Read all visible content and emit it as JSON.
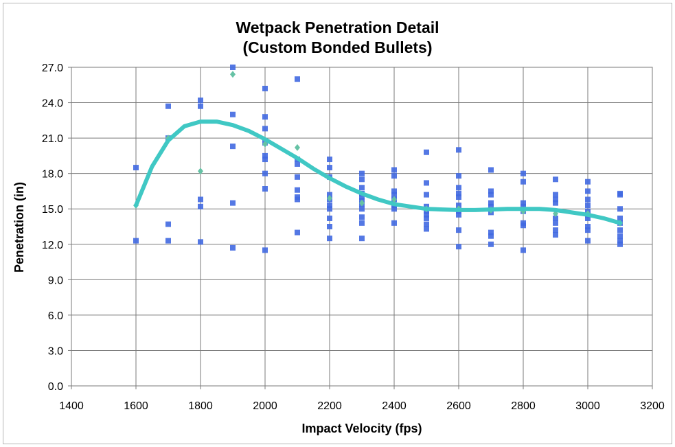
{
  "chart_data": {
    "type": "scatter",
    "title": "Wetpack Penetration Detail",
    "subtitle": "(Custom Bonded Bullets)",
    "xlabel": "Impact Velocity (fps)",
    "ylabel": "Penetration (in)",
    "xlim": [
      1400,
      3200
    ],
    "ylim": [
      0,
      27
    ],
    "x_ticks": [
      "1400",
      "1600",
      "1800",
      "2000",
      "2200",
      "2400",
      "2600",
      "2800",
      "3000",
      "3200"
    ],
    "y_ticks": [
      "0.0",
      "3.0",
      "6.0",
      "9.0",
      "12.0",
      "15.0",
      "18.0",
      "21.0",
      "24.0",
      "27.0"
    ],
    "grid": true,
    "legend": "none",
    "colors": {
      "points": "#4169e1",
      "means": "#66c2a5",
      "curve": "#40c8c4",
      "grid": "#7a7a7a"
    },
    "series": [
      {
        "marker": "square",
        "points": [
          [
            1600,
            18.5
          ],
          [
            1600,
            12.3
          ],
          [
            1700,
            23.7
          ],
          [
            1700,
            21.0
          ],
          [
            1700,
            13.7
          ],
          [
            1700,
            12.3
          ],
          [
            1800,
            24.2
          ],
          [
            1800,
            23.7
          ],
          [
            1800,
            15.8
          ],
          [
            1800,
            15.2
          ],
          [
            1800,
            12.2
          ],
          [
            1900,
            27.0
          ],
          [
            1900,
            23.0
          ],
          [
            1900,
            20.3
          ],
          [
            1900,
            15.5
          ],
          [
            1900,
            11.7
          ],
          [
            2000,
            25.2
          ],
          [
            2000,
            22.8
          ],
          [
            2000,
            21.8
          ],
          [
            2000,
            20.6
          ],
          [
            2000,
            19.5
          ],
          [
            2000,
            19.2
          ],
          [
            2000,
            18.0
          ],
          [
            2000,
            16.7
          ],
          [
            2000,
            11.5
          ],
          [
            2100,
            26.0
          ],
          [
            2100,
            19.2
          ],
          [
            2100,
            18.8
          ],
          [
            2100,
            17.7
          ],
          [
            2100,
            16.6
          ],
          [
            2100,
            16.0
          ],
          [
            2100,
            15.8
          ],
          [
            2100,
            13.0
          ],
          [
            2200,
            19.2
          ],
          [
            2200,
            18.5
          ],
          [
            2200,
            17.7
          ],
          [
            2200,
            16.2
          ],
          [
            2200,
            15.8
          ],
          [
            2200,
            15.3
          ],
          [
            2200,
            15.0
          ],
          [
            2200,
            14.2
          ],
          [
            2200,
            13.5
          ],
          [
            2200,
            12.5
          ],
          [
            2300,
            18.0
          ],
          [
            2300,
            17.5
          ],
          [
            2300,
            16.8
          ],
          [
            2300,
            16.3
          ],
          [
            2300,
            16.0
          ],
          [
            2300,
            15.7
          ],
          [
            2300,
            15.4
          ],
          [
            2300,
            15.0
          ],
          [
            2300,
            14.3
          ],
          [
            2300,
            13.8
          ],
          [
            2300,
            12.5
          ],
          [
            2400,
            18.3
          ],
          [
            2400,
            17.8
          ],
          [
            2400,
            16.5
          ],
          [
            2400,
            16.2
          ],
          [
            2400,
            15.8
          ],
          [
            2400,
            15.3
          ],
          [
            2400,
            15.0
          ],
          [
            2400,
            13.8
          ],
          [
            2500,
            19.8
          ],
          [
            2500,
            17.2
          ],
          [
            2500,
            16.2
          ],
          [
            2500,
            15.2
          ],
          [
            2500,
            14.8
          ],
          [
            2500,
            14.5
          ],
          [
            2500,
            14.2
          ],
          [
            2500,
            13.7
          ],
          [
            2500,
            13.3
          ],
          [
            2600,
            20.0
          ],
          [
            2600,
            17.8
          ],
          [
            2600,
            16.8
          ],
          [
            2600,
            16.3
          ],
          [
            2600,
            16.0
          ],
          [
            2600,
            15.3
          ],
          [
            2600,
            14.8
          ],
          [
            2600,
            14.5
          ],
          [
            2600,
            13.2
          ],
          [
            2600,
            11.8
          ],
          [
            2700,
            18.3
          ],
          [
            2700,
            16.5
          ],
          [
            2700,
            16.2
          ],
          [
            2700,
            15.5
          ],
          [
            2700,
            15.2
          ],
          [
            2700,
            14.7
          ],
          [
            2700,
            13.0
          ],
          [
            2700,
            12.7
          ],
          [
            2700,
            12.0
          ],
          [
            2800,
            18.0
          ],
          [
            2800,
            17.3
          ],
          [
            2800,
            15.5
          ],
          [
            2800,
            15.2
          ],
          [
            2800,
            14.8
          ],
          [
            2800,
            13.8
          ],
          [
            2800,
            13.6
          ],
          [
            2800,
            11.5
          ],
          [
            2900,
            17.5
          ],
          [
            2900,
            16.2
          ],
          [
            2900,
            15.8
          ],
          [
            2900,
            15.5
          ],
          [
            2900,
            14.2
          ],
          [
            2900,
            13.8
          ],
          [
            2900,
            13.2
          ],
          [
            2900,
            12.8
          ],
          [
            3000,
            17.3
          ],
          [
            3000,
            16.5
          ],
          [
            3000,
            15.8
          ],
          [
            3000,
            15.3
          ],
          [
            3000,
            14.8
          ],
          [
            3000,
            14.5
          ],
          [
            3000,
            14.2
          ],
          [
            3000,
            13.5
          ],
          [
            3000,
            13.2
          ],
          [
            3000,
            12.3
          ],
          [
            3100,
            16.3
          ],
          [
            3100,
            16.2
          ],
          [
            3100,
            15.0
          ],
          [
            3100,
            14.2
          ],
          [
            3100,
            13.8
          ],
          [
            3100,
            13.2
          ],
          [
            3100,
            12.7
          ],
          [
            3100,
            12.3
          ],
          [
            3100,
            12.0
          ]
        ]
      },
      {
        "marker": "diamond",
        "points": [
          [
            1600,
            15.3
          ],
          [
            1700,
            21.0
          ],
          [
            1800,
            18.2
          ],
          [
            1900,
            26.4
          ],
          [
            2000,
            20.5
          ],
          [
            2100,
            20.2
          ],
          [
            2200,
            15.9
          ],
          [
            2300,
            15.5
          ],
          [
            2400,
            15.8
          ],
          [
            2500,
            15.0
          ],
          [
            2600,
            15.0
          ],
          [
            2700,
            14.9
          ],
          [
            2800,
            14.8
          ],
          [
            2900,
            14.6
          ],
          [
            3000,
            14.6
          ],
          [
            3100,
            13.8
          ]
        ]
      },
      {
        "marker": "line",
        "points": [
          [
            1600,
            15.3
          ],
          [
            1650,
            18.6
          ],
          [
            1700,
            20.8
          ],
          [
            1750,
            22.0
          ],
          [
            1800,
            22.4
          ],
          [
            1850,
            22.4
          ],
          [
            1900,
            22.1
          ],
          [
            1950,
            21.6
          ],
          [
            2000,
            20.9
          ],
          [
            2050,
            20.1
          ],
          [
            2100,
            19.3
          ],
          [
            2150,
            18.4
          ],
          [
            2200,
            17.6
          ],
          [
            2250,
            16.9
          ],
          [
            2300,
            16.3
          ],
          [
            2350,
            15.8
          ],
          [
            2400,
            15.4
          ],
          [
            2450,
            15.2
          ],
          [
            2500,
            15.0
          ],
          [
            2550,
            14.95
          ],
          [
            2600,
            14.9
          ],
          [
            2650,
            14.9
          ],
          [
            2700,
            14.95
          ],
          [
            2750,
            15.0
          ],
          [
            2800,
            15.0
          ],
          [
            2850,
            15.0
          ],
          [
            2900,
            14.9
          ],
          [
            2950,
            14.7
          ],
          [
            3000,
            14.5
          ],
          [
            3050,
            14.2
          ],
          [
            3100,
            13.8
          ]
        ]
      }
    ]
  }
}
